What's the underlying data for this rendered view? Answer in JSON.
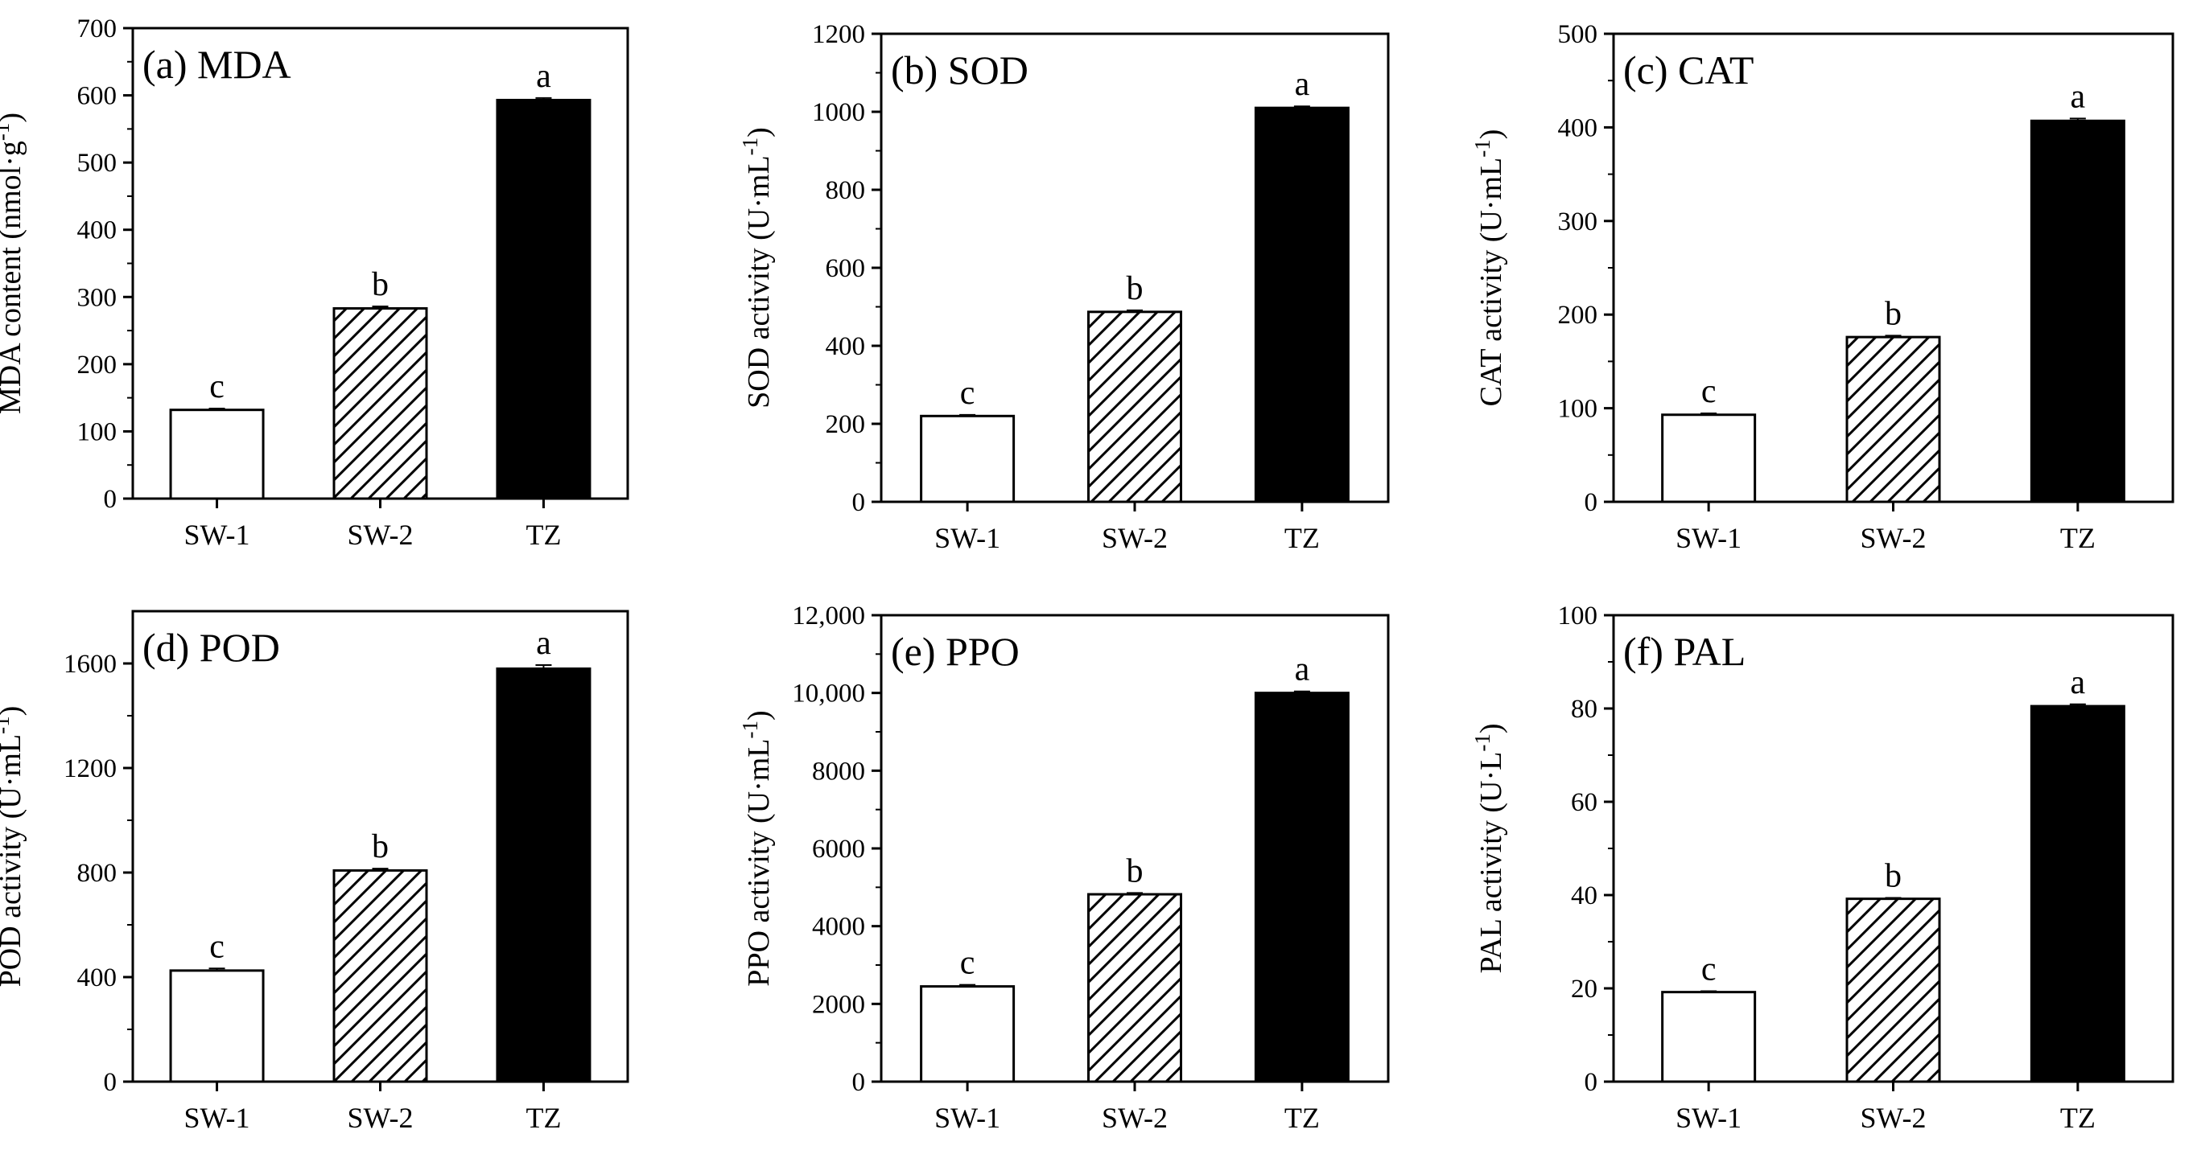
{
  "figure": {
    "patterns": {
      "hatch_color": "#000000"
    }
  },
  "chart_data": [
    {
      "type": "bar",
      "panel_label": "(a) MDA",
      "ylabel": "MDA content (nmol·g",
      "ylabel_sup": "-1",
      "ylabel_close": ")",
      "categories": [
        "SW-1",
        "SW-2",
        "TZ"
      ],
      "values": [
        132,
        283,
        593
      ],
      "errors": [
        2,
        3,
        3
      ],
      "sig_letters": [
        "c",
        "b",
        "a"
      ],
      "fills": [
        "white",
        "hatch",
        "black"
      ],
      "ylim": [
        0,
        700
      ],
      "yticks": [
        0,
        100,
        200,
        300,
        400,
        500,
        600,
        700
      ],
      "ytick_labels": [
        "0",
        "100",
        "200",
        "300",
        "400",
        "500",
        "600",
        "700"
      ]
    },
    {
      "type": "bar",
      "panel_label": "(b) SOD",
      "ylabel": "SOD activity (U·mL",
      "ylabel_sup": "-1",
      "ylabel_close": ")",
      "categories": [
        "SW-1",
        "SW-2",
        "TZ"
      ],
      "values": [
        220,
        487,
        1010
      ],
      "errors": [
        3,
        4,
        4
      ],
      "sig_letters": [
        "c",
        "b",
        "a"
      ],
      "fills": [
        "white",
        "hatch",
        "black"
      ],
      "ylim": [
        0,
        1200
      ],
      "yticks": [
        0,
        200,
        400,
        600,
        800,
        1000,
        1200
      ],
      "ytick_labels": [
        "0",
        "200",
        "400",
        "600",
        "800",
        "1000",
        "1200"
      ]
    },
    {
      "type": "bar",
      "panel_label": "(c) CAT",
      "ylabel": "CAT activity (U·mL",
      "ylabel_sup": "-1",
      "ylabel_close": ")",
      "categories": [
        "SW-1",
        "SW-2",
        "TZ"
      ],
      "values": [
        93,
        176,
        407
      ],
      "errors": [
        1.5,
        1.5,
        2.5
      ],
      "sig_letters": [
        "c",
        "b",
        "a"
      ],
      "fills": [
        "white",
        "hatch",
        "black"
      ],
      "ylim": [
        0,
        500
      ],
      "yticks": [
        0,
        100,
        200,
        300,
        400,
        500
      ],
      "ytick_labels": [
        "0",
        "100",
        "200",
        "300",
        "400",
        "500"
      ]
    },
    {
      "type": "bar",
      "panel_label": "(d) POD",
      "ylabel": "POD activity (U·mL",
      "ylabel_sup": "-1",
      "ylabel_close": ")",
      "categories": [
        "SW-1",
        "SW-2",
        "TZ"
      ],
      "values": [
        425,
        808,
        1580
      ],
      "errors": [
        8,
        7,
        14
      ],
      "sig_letters": [
        "c",
        "b",
        "a"
      ],
      "fills": [
        "white",
        "hatch",
        "black"
      ],
      "ylim": [
        0,
        1800
      ],
      "yticks": [
        0,
        400,
        800,
        1200,
        1600
      ],
      "ytick_labels": [
        "0",
        "400",
        "800",
        "1200",
        "1600"
      ]
    },
    {
      "type": "bar",
      "panel_label": "(e) PPO",
      "ylabel": "PPO activity (U·mL",
      "ylabel_sup": "-1",
      "ylabel_close": ")",
      "categories": [
        "SW-1",
        "SW-2",
        "TZ"
      ],
      "values": [
        2450,
        4820,
        10000
      ],
      "errors": [
        40,
        35,
        40
      ],
      "sig_letters": [
        "c",
        "b",
        "a"
      ],
      "fills": [
        "white",
        "hatch",
        "black"
      ],
      "ylim": [
        0,
        12000
      ],
      "yticks": [
        0,
        2000,
        4000,
        6000,
        8000,
        10000,
        12000
      ],
      "ytick_labels": [
        "0",
        "2000",
        "4000",
        "6000",
        "8000",
        "10,000",
        "12,000"
      ]
    },
    {
      "type": "bar",
      "panel_label": "(f) PAL",
      "ylabel": "PAL activity (U·L",
      "ylabel_sup": "-1",
      "ylabel_close": ")",
      "categories": [
        "SW-1",
        "SW-2",
        "TZ"
      ],
      "values": [
        19.2,
        39.2,
        80.5
      ],
      "errors": [
        0.2,
        0.2,
        0.4
      ],
      "sig_letters": [
        "c",
        "b",
        "a"
      ],
      "fills": [
        "white",
        "hatch",
        "black"
      ],
      "ylim": [
        0,
        100
      ],
      "yticks": [
        0,
        20,
        40,
        60,
        80,
        100
      ],
      "ytick_labels": [
        "0",
        "20",
        "40",
        "60",
        "80",
        "100"
      ]
    }
  ]
}
